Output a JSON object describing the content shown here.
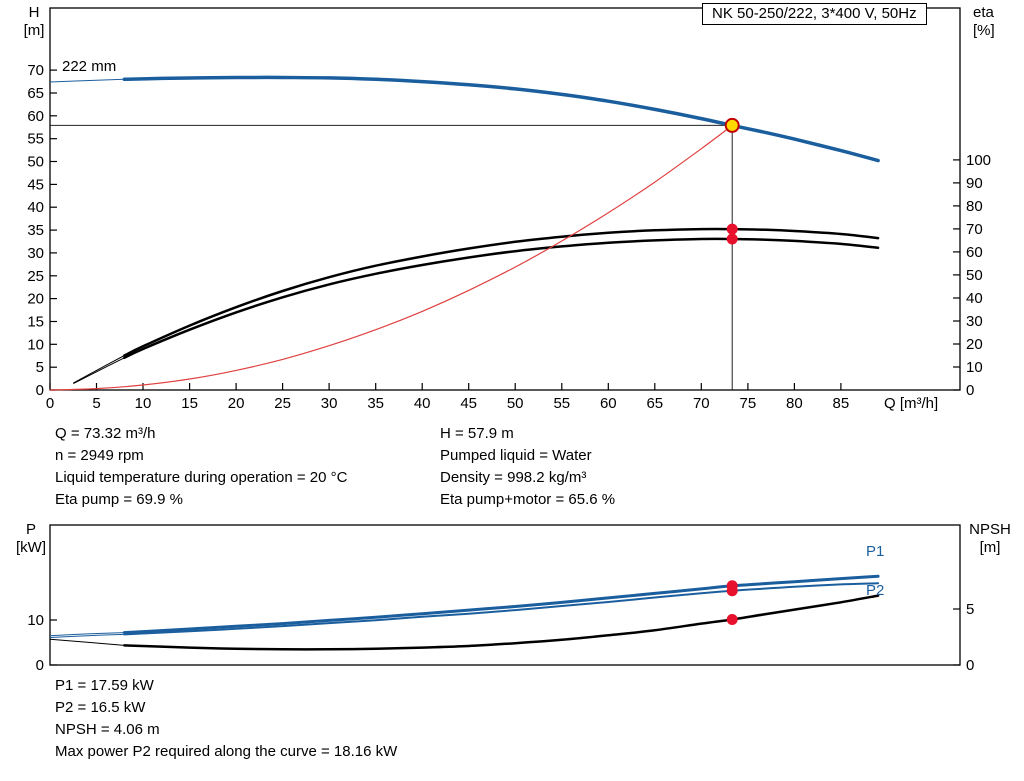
{
  "title_box": {
    "text": "NK 50-250/222, 3*400 V, 50Hz"
  },
  "axis_labels": {
    "h": "H",
    "h_unit": "[m]",
    "eta": "eta",
    "eta_unit": "[%]",
    "q": "Q [m³/h]",
    "p": "P",
    "p_unit": "[kW]",
    "npsh": "NPSH",
    "npsh_unit": "[m]"
  },
  "curve_labels": {
    "impeller_diameter": "222 mm",
    "p1": "P1",
    "p2": "P2"
  },
  "info": {
    "left": [
      "Q = 73.32 m³/h",
      "n = 2949 rpm",
      "Liquid temperature during operation = 20 °C",
      "Eta pump = 69.9 %"
    ],
    "right": [
      "H = 57.9 m",
      "Pumped liquid = Water",
      "Density = 998.2 kg/m³",
      "Eta pump+motor = 65.6 %"
    ]
  },
  "results": [
    "P1 = 17.59 kW",
    "P2 = 16.5 kW",
    "NPSH = 4.06 m",
    "Max power P2 required along the curve = 18.16 kW"
  ],
  "colors": {
    "curve_blue": "#1b5e9e",
    "curve_black": "#000000",
    "curve_red": "#e04040",
    "dot_red": "#e8112d",
    "duty_fill": "#ffd900",
    "duty_stroke": "#c00000",
    "axis": "#000000"
  },
  "chart_data": [
    {
      "type": "line",
      "title": "NK 50-250/222, 3*400 V, 50Hz",
      "grid": false,
      "x": {
        "label": "Q [m³/h]",
        "min": 0,
        "max": 97.8,
        "ticks": [
          0,
          5,
          10,
          15,
          20,
          25,
          30,
          35,
          40,
          45,
          50,
          55,
          60,
          65,
          70,
          75,
          80,
          85
        ]
      },
      "y_left": {
        "label": "H [m]",
        "min": 0,
        "max": 83.6,
        "ticks": [
          0,
          5,
          10,
          15,
          20,
          25,
          30,
          35,
          40,
          45,
          50,
          55,
          60,
          65,
          70
        ]
      },
      "y_right": {
        "label": "eta [%]",
        "min": 0,
        "max": 166,
        "ticks": [
          0,
          10,
          20,
          30,
          40,
          50,
          60,
          70,
          80,
          90,
          100
        ]
      },
      "series": [
        {
          "name": "head_222mm",
          "axis": "left",
          "color": "blue",
          "width": 3.5,
          "thick_from": 8,
          "points": [
            [
              0,
              67.4
            ],
            [
              5,
              67.8
            ],
            [
              8,
              68.0
            ],
            [
              12,
              68.2
            ],
            [
              16,
              68.3
            ],
            [
              20,
              68.4
            ],
            [
              25,
              68.4
            ],
            [
              30,
              68.3
            ],
            [
              35,
              68.0
            ],
            [
              40,
              67.5
            ],
            [
              45,
              66.8
            ],
            [
              50,
              65.9
            ],
            [
              55,
              64.7
            ],
            [
              60,
              63.2
            ],
            [
              65,
              61.4
            ],
            [
              70,
              59.4
            ],
            [
              73.32,
              57.9
            ],
            [
              77,
              56.3
            ],
            [
              80,
              54.9
            ],
            [
              85,
              52.4
            ],
            [
              89,
              50.2
            ]
          ]
        },
        {
          "name": "eta_pump",
          "axis": "right",
          "color": "black",
          "width": 2.5,
          "thick_from": 8,
          "points": [
            [
              2.5,
              3
            ],
            [
              5,
              8.5
            ],
            [
              8,
              15
            ],
            [
              10,
              19
            ],
            [
              15,
              28
            ],
            [
              20,
              36
            ],
            [
              25,
              43
            ],
            [
              30,
              49
            ],
            [
              35,
              54
            ],
            [
              40,
              58
            ],
            [
              45,
              61.5
            ],
            [
              50,
              64.4
            ],
            [
              55,
              66.6
            ],
            [
              60,
              68.3
            ],
            [
              65,
              69.4
            ],
            [
              70,
              69.9
            ],
            [
              73.32,
              69.9
            ],
            [
              77,
              69.6
            ],
            [
              80,
              69.1
            ],
            [
              85,
              67.8
            ],
            [
              89,
              66.0
            ]
          ]
        },
        {
          "name": "eta_pump_motor",
          "axis": "right",
          "color": "black",
          "width": 2.5,
          "thick_from": 8,
          "points": [
            [
              2.5,
              2.8
            ],
            [
              5,
              7.9
            ],
            [
              8,
              14
            ],
            [
              10,
              17.8
            ],
            [
              15,
              26.2
            ],
            [
              20,
              33.7
            ],
            [
              25,
              40.3
            ],
            [
              30,
              45.9
            ],
            [
              35,
              50.5
            ],
            [
              40,
              54.3
            ],
            [
              45,
              57.6
            ],
            [
              50,
              60.3
            ],
            [
              55,
              62.4
            ],
            [
              60,
              64.0
            ],
            [
              65,
              65.0
            ],
            [
              70,
              65.6
            ],
            [
              73.32,
              65.6
            ],
            [
              77,
              65.3
            ],
            [
              80,
              64.8
            ],
            [
              85,
              63.5
            ],
            [
              89,
              61.8
            ]
          ]
        },
        {
          "name": "system_curve",
          "axis": "left",
          "color": "red",
          "width": 1.2,
          "thick_from": 0,
          "points": [
            [
              0,
              0
            ],
            [
              5,
              0.3
            ],
            [
              10,
              1.1
            ],
            [
              15,
              2.4
            ],
            [
              20,
              4.3
            ],
            [
              25,
              6.7
            ],
            [
              30,
              9.7
            ],
            [
              35,
              13.2
            ],
            [
              40,
              17.2
            ],
            [
              45,
              21.8
            ],
            [
              50,
              26.9
            ],
            [
              55,
              32.6
            ],
            [
              60,
              38.8
            ],
            [
              65,
              45.5
            ],
            [
              70,
              52.8
            ],
            [
              73.32,
              57.9
            ]
          ]
        }
      ],
      "ref_lines": [
        {
          "dir": "v",
          "x": 73.32,
          "to": 57.9,
          "axis": "left"
        },
        {
          "dir": "h",
          "y": 57.9,
          "to": 73.32,
          "axis": "left"
        }
      ],
      "markers": [
        {
          "x": 73.32,
          "y": 57.9,
          "axis": "left",
          "style": "duty"
        },
        {
          "x": 73.32,
          "y": 69.9,
          "axis": "right",
          "style": "dot"
        },
        {
          "x": 73.32,
          "y": 65.6,
          "axis": "right",
          "style": "dot"
        }
      ]
    },
    {
      "type": "line",
      "title": "",
      "grid": false,
      "x": {
        "label": "Q [m³/h]",
        "min": 0,
        "max": 97.8,
        "ticks": []
      },
      "y_left": {
        "label": "P [kW]",
        "min": 0,
        "max": 31.1,
        "ticks": [
          0,
          10
        ]
      },
      "y_right": {
        "label": "NPSH [m]",
        "min": 0,
        "max": 12.5,
        "ticks": [
          0,
          5
        ]
      },
      "series": [
        {
          "name": "P1",
          "axis": "left",
          "color": "blue",
          "width": 3,
          "thick_from": 8,
          "points": [
            [
              0,
              6.5
            ],
            [
              4,
              6.9
            ],
            [
              8,
              7.2
            ],
            [
              15,
              8.0
            ],
            [
              20,
              8.6
            ],
            [
              25,
              9.2
            ],
            [
              30,
              9.9
            ],
            [
              35,
              10.6
            ],
            [
              40,
              11.4
            ],
            [
              45,
              12.2
            ],
            [
              50,
              13.0
            ],
            [
              55,
              13.9
            ],
            [
              60,
              14.9
            ],
            [
              65,
              15.9
            ],
            [
              70,
              16.9
            ],
            [
              73.32,
              17.59
            ],
            [
              77,
              18.1
            ],
            [
              80,
              18.5
            ],
            [
              85,
              19.2
            ],
            [
              89,
              19.7
            ]
          ]
        },
        {
          "name": "P2",
          "axis": "left",
          "color": "blue",
          "width": 2,
          "thick_from": 8,
          "points": [
            [
              0,
              6.1
            ],
            [
              4,
              6.5
            ],
            [
              8,
              6.8
            ],
            [
              15,
              7.5
            ],
            [
              20,
              8.05
            ],
            [
              25,
              8.65
            ],
            [
              30,
              9.3
            ],
            [
              35,
              9.95
            ],
            [
              40,
              10.7
            ],
            [
              45,
              11.4
            ],
            [
              50,
              12.2
            ],
            [
              55,
              13.1
            ],
            [
              60,
              14.0
            ],
            [
              65,
              15.0
            ],
            [
              70,
              15.95
            ],
            [
              73.32,
              16.5
            ],
            [
              77,
              17.0
            ],
            [
              80,
              17.4
            ],
            [
              85,
              17.9
            ],
            [
              89,
              18.16
            ]
          ]
        },
        {
          "name": "NPSH",
          "axis": "right",
          "color": "black",
          "width": 2.5,
          "thick_from": 8,
          "points": [
            [
              0,
              2.3
            ],
            [
              8,
              1.75
            ],
            [
              15,
              1.55
            ],
            [
              20,
              1.45
            ],
            [
              25,
              1.4
            ],
            [
              30,
              1.4
            ],
            [
              35,
              1.45
            ],
            [
              40,
              1.55
            ],
            [
              45,
              1.7
            ],
            [
              50,
              1.95
            ],
            [
              55,
              2.25
            ],
            [
              60,
              2.65
            ],
            [
              65,
              3.1
            ],
            [
              70,
              3.7
            ],
            [
              73.32,
              4.06
            ],
            [
              77,
              4.55
            ],
            [
              80,
              4.95
            ],
            [
              85,
              5.6
            ],
            [
              89,
              6.2
            ]
          ]
        }
      ],
      "ref_lines": [],
      "markers": [
        {
          "x": 73.32,
          "y": 17.59,
          "axis": "left",
          "style": "dot"
        },
        {
          "x": 73.32,
          "y": 16.5,
          "axis": "left",
          "style": "dot"
        },
        {
          "x": 73.32,
          "y": 4.06,
          "axis": "right",
          "style": "dot"
        }
      ]
    }
  ]
}
